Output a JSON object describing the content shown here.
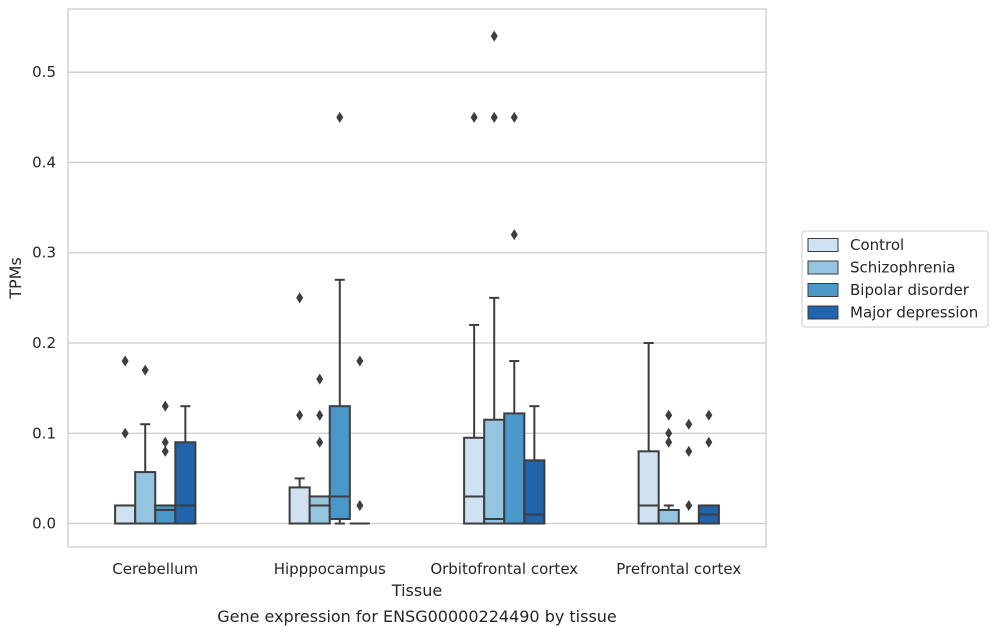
{
  "chart_data": {
    "type": "box",
    "title": "Gene expression for ENSG00000224490 by tissue",
    "xlabel": "Tissue",
    "ylabel": "TPMs",
    "ylim": [
      -0.026,
      0.57
    ],
    "yticks": [
      0.0,
      0.1,
      0.2,
      0.3,
      0.4,
      0.5
    ],
    "ytick_labels": [
      "0.0",
      "0.1",
      "0.2",
      "0.3",
      "0.4",
      "0.5"
    ],
    "grid": "horizontal",
    "legend_position": "right",
    "categories": [
      "Cerebellum",
      "Hipppocampus",
      "Orbitofrontal cortex",
      "Prefrontal cortex"
    ],
    "series": [
      {
        "name": "Control",
        "color": "#d0e1f2",
        "boxes": [
          {
            "min": 0.0,
            "q1": 0.0,
            "median": 0.0,
            "q3": 0.02,
            "max": 0.02,
            "outliers": [
              0.1,
              0.18
            ]
          },
          {
            "min": 0.0,
            "q1": 0.0,
            "median": 0.0,
            "q3": 0.04,
            "max": 0.05,
            "outliers": [
              0.12,
              0.25
            ]
          },
          {
            "min": 0.0,
            "q1": 0.0,
            "median": 0.03,
            "q3": 0.095,
            "max": 0.22,
            "outliers": [
              0.45
            ]
          },
          {
            "min": 0.0,
            "q1": 0.0,
            "median": 0.02,
            "q3": 0.08,
            "max": 0.2,
            "outliers": []
          }
        ]
      },
      {
        "name": "Schizophrenia",
        "color": "#94c4df",
        "boxes": [
          {
            "min": 0.0,
            "q1": 0.0,
            "median": 0.0,
            "q3": 0.057,
            "max": 0.11,
            "outliers": [
              0.17
            ]
          },
          {
            "min": 0.0,
            "q1": 0.0,
            "median": 0.02,
            "q3": 0.03,
            "max": 0.03,
            "outliers": [
              0.09,
              0.12,
              0.16
            ]
          },
          {
            "min": 0.0,
            "q1": 0.0,
            "median": 0.005,
            "q3": 0.115,
            "max": 0.25,
            "outliers": [
              0.45,
              0.54
            ]
          },
          {
            "min": 0.0,
            "q1": 0.0,
            "median": 0.0,
            "q3": 0.015,
            "max": 0.02,
            "outliers": [
              0.09,
              0.1,
              0.12
            ]
          }
        ]
      },
      {
        "name": "Bipolar disorder",
        "color": "#4a98c9",
        "boxes": [
          {
            "min": 0.0,
            "q1": 0.0,
            "median": 0.015,
            "q3": 0.02,
            "max": 0.02,
            "outliers": [
              0.08,
              0.09,
              0.13
            ]
          },
          {
            "min": 0.0,
            "q1": 0.005,
            "median": 0.03,
            "q3": 0.13,
            "max": 0.27,
            "outliers": [
              0.45
            ]
          },
          {
            "min": 0.0,
            "q1": 0.0,
            "median": 0.0,
            "q3": 0.122,
            "max": 0.18,
            "outliers": [
              0.32,
              0.45
            ]
          },
          {
            "min": 0.0,
            "q1": 0.0,
            "median": 0.0,
            "q3": 0.0,
            "max": 0.0,
            "outliers": [
              0.02,
              0.08,
              0.11
            ]
          }
        ]
      },
      {
        "name": "Major depression",
        "color": "#2164ab",
        "boxes": [
          {
            "min": 0.0,
            "q1": 0.0,
            "median": 0.02,
            "q3": 0.09,
            "max": 0.13,
            "outliers": []
          },
          {
            "min": 0.0,
            "q1": 0.0,
            "median": 0.0,
            "q3": 0.0,
            "max": 0.0,
            "outliers": [
              0.02,
              0.18
            ]
          },
          {
            "min": 0.0,
            "q1": 0.0,
            "median": 0.01,
            "q3": 0.07,
            "max": 0.13,
            "outliers": []
          },
          {
            "min": 0.0,
            "q1": 0.0,
            "median": 0.01,
            "q3": 0.02,
            "max": 0.02,
            "outliers": [
              0.09,
              0.12
            ]
          }
        ]
      }
    ]
  }
}
